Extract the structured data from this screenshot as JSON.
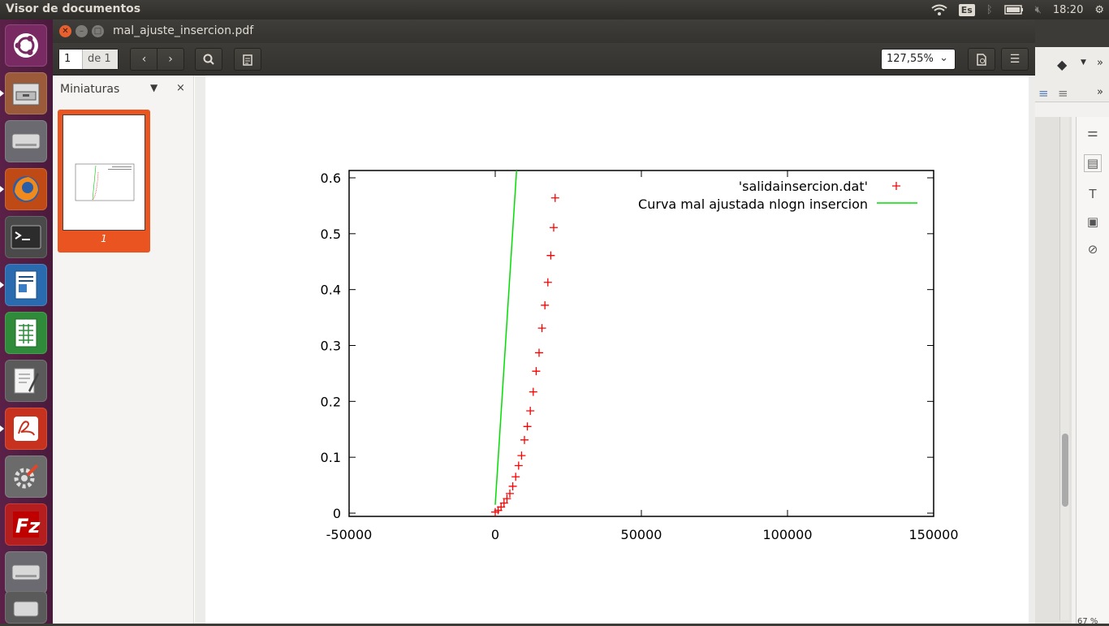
{
  "top_panel": {
    "app_name": "Visor de documentos",
    "keyboard": "Es",
    "clock": "18:20"
  },
  "window": {
    "title": "mal_ajuste_insercion.pdf",
    "page_current": "1",
    "page_of": "de 1",
    "zoom": "127,55%"
  },
  "sidebar": {
    "label": "Miniaturas",
    "thumb_number": "1"
  },
  "bg_window": {
    "zoom": "67 %"
  },
  "colors": {
    "accent": "#e95420",
    "launcher": "#5b2148",
    "points": "#ff0000",
    "fit_line": "#00dd00"
  },
  "chart_data": {
    "type": "scatter",
    "xlim": [
      -50000,
      150000
    ],
    "ylim": [
      0,
      0.61
    ],
    "x_ticks": [
      "-50000",
      "0",
      "50000",
      "100000",
      "150000"
    ],
    "y_ticks": [
      "0",
      "0.1",
      "0.2",
      "0.3",
      "0.4",
      "0.5",
      "0.6"
    ],
    "x_tick_values": [
      -50000,
      0,
      50000,
      100000,
      150000
    ],
    "y_tick_values": [
      0,
      0.1,
      0.2,
      0.3,
      0.4,
      0.5,
      0.6
    ],
    "series": [
      {
        "name": "'salidainsercion.dat'",
        "style": "points",
        "color": "#ff0000",
        "x": [
          0,
          1000,
          2000,
          3000,
          4000,
          5000,
          6000,
          7000,
          8000,
          9000,
          10000,
          11000,
          12000,
          13000,
          14000,
          15000,
          16000,
          17000,
          18000,
          19000,
          20000
        ],
        "y": [
          0.002,
          0.005,
          0.011,
          0.018,
          0.026,
          0.035,
          0.048,
          0.065,
          0.085,
          0.103,
          0.131,
          0.155,
          0.183,
          0.217,
          0.254,
          0.287,
          0.331,
          0.372,
          0.413,
          0.461,
          0.511
        ]
      },
      {
        "name": "Curva mal ajustada nlogn insercion",
        "style": "line",
        "color": "#00dd00",
        "x": [
          0,
          7300
        ],
        "y": [
          0.015,
          0.61
        ]
      }
    ],
    "extra_point": {
      "x": 20500,
      "y": 0.564
    },
    "legend_position": "top-right"
  }
}
